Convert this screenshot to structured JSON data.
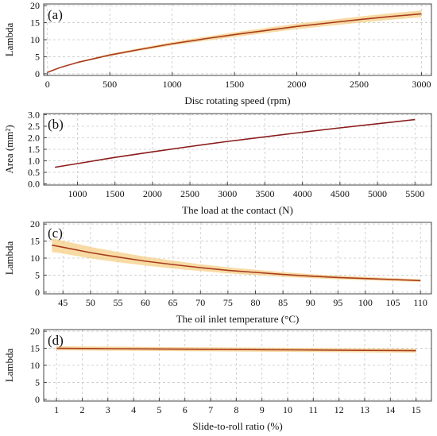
{
  "chart_data": [
    {
      "id": "a",
      "type": "line",
      "panel_label": "(a)",
      "xlabel": "Disc rotating speed (rpm)",
      "ylabel": "Lambda",
      "xlim": [
        -30,
        3080
      ],
      "ylim": [
        -0.5,
        20.5
      ],
      "xticks": [
        0,
        500,
        1000,
        1500,
        2000,
        2500,
        3000
      ],
      "xtick_labels": [
        "0",
        "500",
        "1000",
        "1500",
        "2000",
        "2500",
        "3000"
      ],
      "yticks": [
        0,
        5,
        10,
        15,
        20
      ],
      "ytick_labels": [
        "0",
        "5",
        "10",
        "15",
        "20"
      ],
      "grid": true,
      "series": [
        {
          "x": [
            0,
            100,
            250,
            500,
            750,
            1000,
            1250,
            1500,
            1750,
            2000,
            2250,
            2500,
            2750,
            3000
          ],
          "values": [
            0.4,
            1.8,
            3.4,
            5.5,
            7.2,
            8.8,
            10.2,
            11.5,
            12.7,
            13.9,
            14.9,
            15.9,
            16.8,
            17.6
          ],
          "band_halfwidth": [
            0.1,
            0.15,
            0.2,
            0.3,
            0.4,
            0.5,
            0.6,
            0.7,
            0.75,
            0.8,
            0.85,
            0.9,
            0.95,
            1.0
          ],
          "color": "#a83c1e",
          "band_color": "#f6cf86"
        }
      ]
    },
    {
      "id": "b",
      "type": "line",
      "panel_label": "(b)",
      "xlabel": "The load at the contact (N)",
      "ylabel": "Area (mm²)",
      "xlim": [
        550,
        5720
      ],
      "ylim": [
        -0.05,
        3.05
      ],
      "xticks": [
        1000,
        1500,
        2000,
        2500,
        3000,
        3500,
        4000,
        4500,
        5000,
        5500
      ],
      "xtick_labels": [
        "1000",
        "1500",
        "2000",
        "2500",
        "3000",
        "3500",
        "4000",
        "4500",
        "5000",
        "5500"
      ],
      "yticks": [
        0,
        0.5,
        1,
        1.5,
        2,
        2.5,
        3
      ],
      "ytick_labels": [
        "0.0",
        "0.5",
        "1.0",
        "1.5",
        "2.0",
        "2.5",
        "3.0"
      ],
      "grid": true,
      "series": [
        {
          "x": [
            700,
            1000,
            1500,
            2000,
            2500,
            3000,
            3500,
            4000,
            4500,
            5000,
            5500
          ],
          "values": [
            0.72,
            0.88,
            1.15,
            1.39,
            1.62,
            1.84,
            2.04,
            2.24,
            2.43,
            2.61,
            2.79
          ],
          "band_halfwidth": [
            0.01,
            0.01,
            0.01,
            0.01,
            0.01,
            0.01,
            0.01,
            0.01,
            0.01,
            0.01,
            0.01
          ],
          "color": "#8b1c1c",
          "band_color": "#f6cf86"
        }
      ]
    },
    {
      "id": "c",
      "type": "line",
      "panel_label": "(c)",
      "xlabel": "The oil inlet temperature (°C)",
      "ylabel": "Lambda",
      "xlim": [
        41.5,
        112
      ],
      "ylim": [
        -0.5,
        20.5
      ],
      "xticks": [
        45,
        50,
        55,
        60,
        65,
        70,
        75,
        80,
        85,
        90,
        95,
        100,
        105,
        110
      ],
      "xtick_labels": [
        "45",
        "50",
        "55",
        "60",
        "65",
        "70",
        "75",
        "80",
        "85",
        "90",
        "95",
        "100",
        "105",
        "110"
      ],
      "yticks": [
        0,
        5,
        10,
        15,
        20
      ],
      "ytick_labels": [
        "0",
        "5",
        "10",
        "15",
        "20"
      ],
      "grid": true,
      "series": [
        {
          "x": [
            43,
            45,
            50,
            55,
            60,
            65,
            70,
            75,
            80,
            85,
            90,
            95,
            100,
            105,
            110
          ],
          "values": [
            13.8,
            13.2,
            11.6,
            10.3,
            9.1,
            8.1,
            7.2,
            6.4,
            5.8,
            5.2,
            4.7,
            4.3,
            4.0,
            3.7,
            3.4
          ],
          "band_halfwidth": [
            2.0,
            1.9,
            1.7,
            1.5,
            1.3,
            1.15,
            1.0,
            0.9,
            0.8,
            0.7,
            0.6,
            0.55,
            0.5,
            0.45,
            0.4
          ],
          "color": "#a83c1e",
          "band_color": "#f6cf86"
        }
      ]
    },
    {
      "id": "d",
      "type": "line",
      "panel_label": "(d)",
      "xlabel": "Slide-to-roll ratio (%)",
      "ylabel": "Lambda",
      "xlim": [
        0.5,
        15.6
      ],
      "ylim": [
        -0.5,
        20.5
      ],
      "xticks": [
        1,
        2,
        3,
        4,
        5,
        6,
        7,
        8,
        9,
        10,
        11,
        12,
        13,
        14,
        15
      ],
      "xtick_labels": [
        "1",
        "2",
        "3",
        "4",
        "5",
        "6",
        "7",
        "8",
        "9",
        "10",
        "11",
        "12",
        "13",
        "14",
        "15"
      ],
      "yticks": [
        0,
        5,
        10,
        15,
        20
      ],
      "ytick_labels": [
        "0",
        "5",
        "10",
        "15",
        "20"
      ],
      "grid": true,
      "series": [
        {
          "x": [
            1,
            3,
            5,
            7,
            9,
            11,
            13,
            15
          ],
          "values": [
            15.0,
            14.9,
            14.8,
            14.7,
            14.6,
            14.5,
            14.4,
            14.3
          ],
          "band_halfwidth": [
            0.6,
            0.6,
            0.6,
            0.6,
            0.6,
            0.6,
            0.6,
            0.6
          ],
          "color": "#a83c1e",
          "band_color": "#f6cf86"
        }
      ]
    }
  ]
}
